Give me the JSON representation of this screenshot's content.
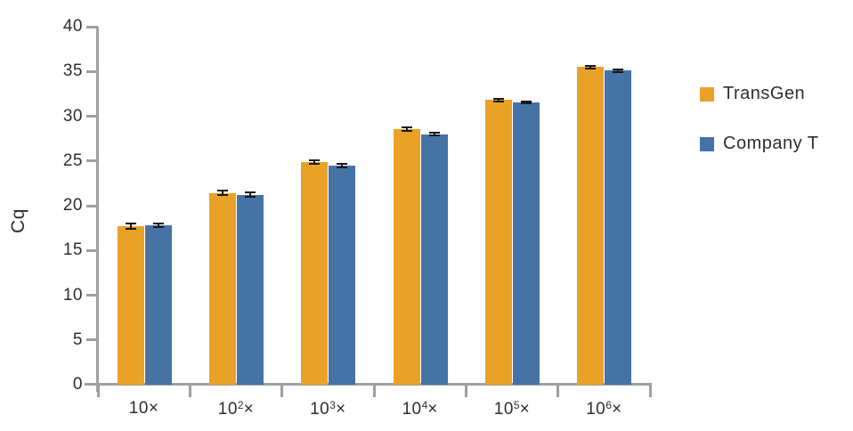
{
  "chart_data": {
    "type": "bar",
    "title": "",
    "xlabel": "",
    "ylabel": "Cq",
    "ylim": [
      0,
      40
    ],
    "yticks": [
      0,
      5,
      10,
      15,
      20,
      25,
      30,
      35,
      40
    ],
    "grid": false,
    "legend_position": "right",
    "error_bars": true,
    "categories": [
      {
        "display": "10×",
        "base": "10",
        "exp": "",
        "suffix": "×"
      },
      {
        "display": "10²×",
        "base": "10",
        "exp": "2",
        "suffix": "×"
      },
      {
        "display": "10³×",
        "base": "10",
        "exp": "3",
        "suffix": "×"
      },
      {
        "display": "10⁴×",
        "base": "10",
        "exp": "4",
        "suffix": "×"
      },
      {
        "display": "10⁵×",
        "base": "10",
        "exp": "5",
        "suffix": "×"
      },
      {
        "display": "10⁶×",
        "base": "10",
        "exp": "6",
        "suffix": "×"
      }
    ],
    "series": [
      {
        "name": "TransGen",
        "color": "#E9A227",
        "values": [
          17.7,
          21.4,
          24.9,
          28.6,
          31.8,
          35.5
        ],
        "errors": [
          0.3,
          0.25,
          0.2,
          0.2,
          0.15,
          0.15
        ]
      },
      {
        "name": "Company T",
        "color": "#4573A5",
        "values": [
          17.8,
          21.2,
          24.5,
          28.0,
          31.5,
          35.1
        ],
        "errors": [
          0.2,
          0.25,
          0.2,
          0.15,
          0.1,
          0.15
        ]
      }
    ]
  },
  "colors": {
    "axis": "#a0a0a0",
    "text": "#2e2e2e",
    "error_bar": "#1a1a1a",
    "background": "#ffffff"
  }
}
